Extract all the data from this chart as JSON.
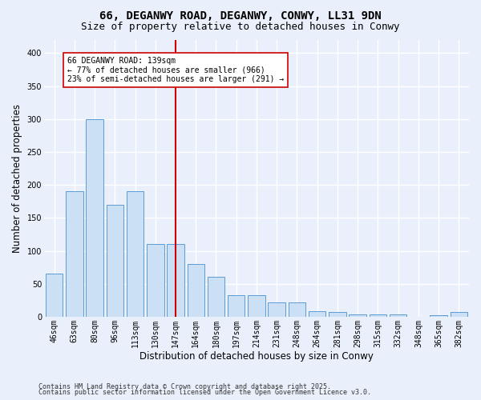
{
  "title1": "66, DEGANWY ROAD, DEGANWY, CONWY, LL31 9DN",
  "title2": "Size of property relative to detached houses in Conwy",
  "xlabel": "Distribution of detached houses by size in Conwy",
  "ylabel": "Number of detached properties",
  "bar_labels": [
    "46sqm",
    "63sqm",
    "80sqm",
    "96sqm",
    "113sqm",
    "130sqm",
    "147sqm",
    "164sqm",
    "180sqm",
    "197sqm",
    "214sqm",
    "231sqm",
    "248sqm",
    "264sqm",
    "281sqm",
    "298sqm",
    "315sqm",
    "332sqm",
    "348sqm",
    "365sqm",
    "382sqm"
  ],
  "bar_values": [
    65,
    190,
    300,
    170,
    190,
    110,
    110,
    80,
    60,
    33,
    33,
    22,
    22,
    8,
    7,
    4,
    4,
    4,
    0,
    2,
    7
  ],
  "bar_color": "#cce0f5",
  "bar_edge_color": "#5b9bd5",
  "ref_line_color": "#cc0000",
  "annotation_text": "66 DEGANWY ROAD: 139sqm\n← 77% of detached houses are smaller (966)\n23% of semi-detached houses are larger (291) →",
  "annotation_box_color": "#ffffff",
  "annotation_box_edge_color": "#cc0000",
  "ylim": [
    0,
    420
  ],
  "yticks": [
    0,
    50,
    100,
    150,
    200,
    250,
    300,
    350,
    400
  ],
  "footer1": "Contains HM Land Registry data © Crown copyright and database right 2025.",
  "footer2": "Contains public sector information licensed under the Open Government Licence v3.0.",
  "bg_color": "#eaf0fb",
  "plot_bg_color": "#eaf0fb",
  "grid_color": "#ffffff",
  "title_fontsize": 10,
  "subtitle_fontsize": 9,
  "tick_fontsize": 7,
  "label_fontsize": 8.5,
  "footer_fontsize": 6,
  "annot_fontsize": 7
}
